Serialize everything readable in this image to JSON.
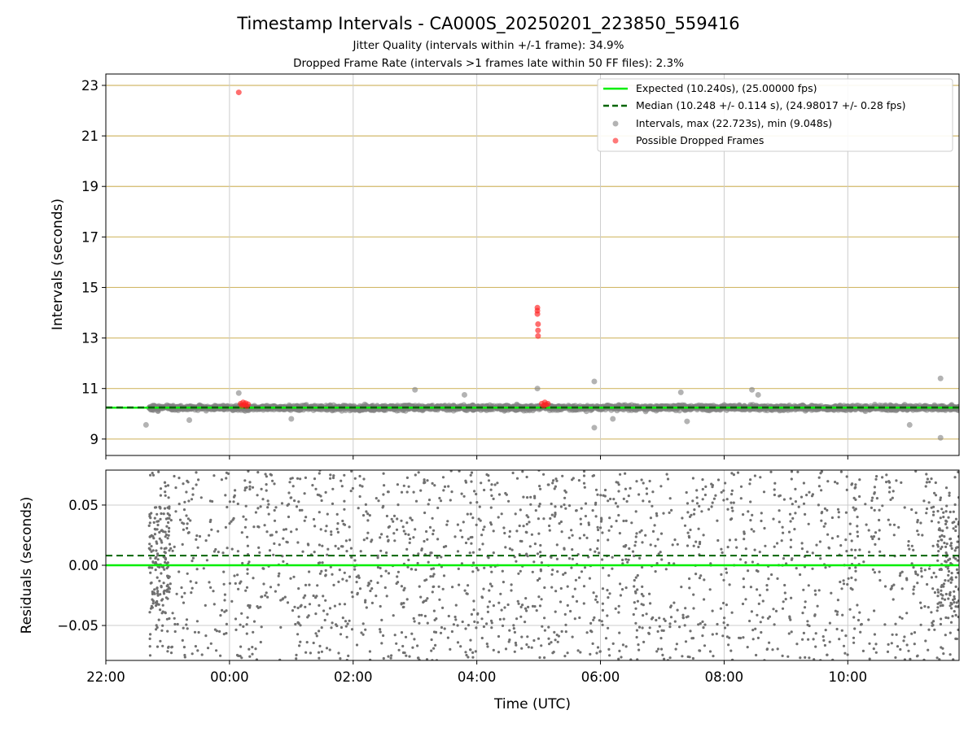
{
  "chart_data": [
    {
      "type": "scatter",
      "title": "Timestamp Intervals - CA000S_20250201_223850_559416",
      "subtitles": [
        "Jitter Quality (intervals within +/-1 frame): 34.9%",
        "Dropped Frame Rate (intervals >1 frames late within 50 FF files): 2.3%"
      ],
      "ylabel": "Intervals (seconds)",
      "xlim": [
        -2.0,
        11.8
      ],
      "ylim": [
        8.35,
        23.45
      ],
      "yticks": [
        9,
        11,
        13,
        15,
        17,
        19,
        21,
        23
      ],
      "ytick_labels": [
        "9",
        "11",
        "13",
        "15",
        "17",
        "19",
        "21",
        "23"
      ],
      "grid": "horizontal gold + vertical gray",
      "legend_position": "top-right",
      "legend": [
        "Expected (10.240s), (25.00000 fps)",
        "Median (10.248 +/- 0.114 s), (24.98017 +/- 0.28 fps)",
        "Intervals, max (22.723s), min (9.048s)",
        "Possible Dropped Frames"
      ],
      "expected_interval": 10.24,
      "median_interval": 10.248,
      "interval_band": {
        "x_start": -1.3,
        "x_end": 11.8,
        "center": 10.24,
        "spread": 0.12
      },
      "interval_outliers": [
        {
          "x": -1.35,
          "y": 9.56
        },
        {
          "x": 0.15,
          "y": 10.82
        },
        {
          "x": 3.0,
          "y": 10.95
        },
        {
          "x": 3.8,
          "y": 10.75
        },
        {
          "x": 4.98,
          "y": 11.0
        },
        {
          "x": 5.9,
          "y": 11.28
        },
        {
          "x": 5.9,
          "y": 9.45
        },
        {
          "x": 7.3,
          "y": 10.85
        },
        {
          "x": 8.45,
          "y": 10.95
        },
        {
          "x": 8.55,
          "y": 10.75
        },
        {
          "x": 11.0,
          "y": 9.56
        },
        {
          "x": 11.5,
          "y": 11.4
        },
        {
          "x": 11.5,
          "y": 9.05
        },
        {
          "x": -0.65,
          "y": 9.75
        },
        {
          "x": 1.0,
          "y": 9.8
        },
        {
          "x": 6.2,
          "y": 9.8
        },
        {
          "x": 7.4,
          "y": 9.7
        }
      ],
      "dropped_frames": [
        {
          "x": 0.15,
          "y": 22.723
        },
        {
          "x": 4.98,
          "y": 14.2
        },
        {
          "x": 4.98,
          "y": 14.08
        },
        {
          "x": 4.98,
          "y": 13.95
        },
        {
          "x": 4.99,
          "y": 13.55
        },
        {
          "x": 4.99,
          "y": 13.3
        },
        {
          "x": 4.99,
          "y": 13.08
        },
        {
          "x": 0.18,
          "y": 10.4
        },
        {
          "x": 0.2,
          "y": 10.32
        },
        {
          "x": 0.22,
          "y": 10.45
        },
        {
          "x": 0.24,
          "y": 10.35
        },
        {
          "x": 0.26,
          "y": 10.42
        },
        {
          "x": 0.28,
          "y": 10.3
        },
        {
          "x": 0.3,
          "y": 10.38
        },
        {
          "x": 5.05,
          "y": 10.4
        },
        {
          "x": 5.08,
          "y": 10.32
        },
        {
          "x": 5.1,
          "y": 10.45
        },
        {
          "x": 5.12,
          "y": 10.36
        },
        {
          "x": 5.15,
          "y": 10.4
        }
      ],
      "colors": {
        "expected": "#00ee00",
        "median": "#006400",
        "intervals": "#808080",
        "dropped": "#ff2020",
        "ygrid": "#d2b96a",
        "xgrid": "#cccccc"
      }
    },
    {
      "type": "scatter",
      "ylabel": "Residuals (seconds)",
      "xlabel": "Time (UTC)",
      "xlim": [
        -2.0,
        11.8
      ],
      "ylim": [
        -0.079,
        0.079
      ],
      "xticks": [
        -2,
        0,
        2,
        4,
        6,
        8,
        10
      ],
      "xtick_labels": [
        "22:00",
        "00:00",
        "02:00",
        "04:00",
        "06:00",
        "08:00",
        "10:00"
      ],
      "yticks": [
        -0.05,
        0.0,
        0.05
      ],
      "ytick_labels": [
        "−0.05",
        "0.00",
        "0.05"
      ],
      "grid": "gray",
      "expected_residual": 0.0,
      "median_residual": 0.008,
      "residual_spread": {
        "x_start": -1.3,
        "x_end": 11.8,
        "min": -0.079,
        "max": 0.079,
        "count": 2200
      },
      "colors": {
        "expected": "#00ee00",
        "median": "#006400",
        "points": "#707070",
        "grid": "#cccccc"
      }
    }
  ]
}
